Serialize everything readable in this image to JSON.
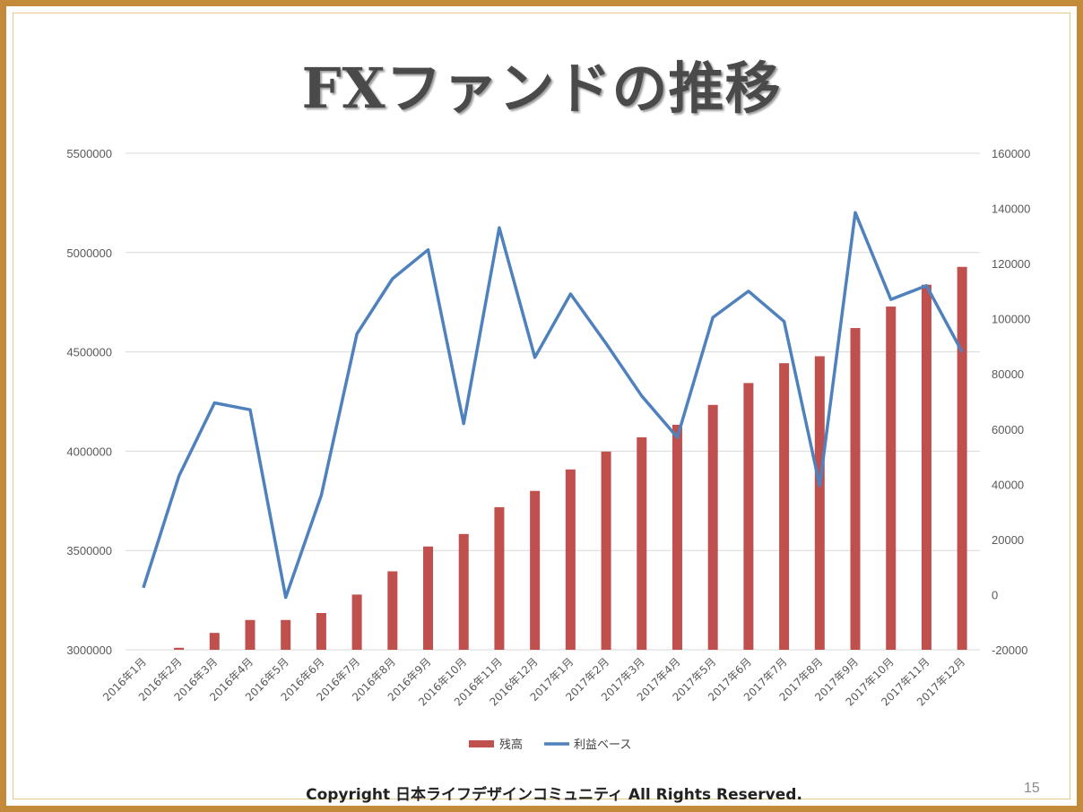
{
  "slide": {
    "title": "FXファンドの推移",
    "footer": "Copyright 日本ライフデザインコミュニティ All Rights Reserved.",
    "page_number": "15"
  },
  "colors": {
    "bar": "#c0504d",
    "line": "#4f81bd",
    "grid": "#d9d9d9",
    "frame": "#c38a3a"
  },
  "chart_data": {
    "type": "bar",
    "combo": "bar+line",
    "categories": [
      "2016年1月",
      "2016年2月",
      "2016年3月",
      "2016年4月",
      "2016年5月",
      "2016年6月",
      "2016年7月",
      "2016年8月",
      "2016年9月",
      "2016年10月",
      "2016年11月",
      "2016年12月",
      "2017年1月",
      "2017年2月",
      "2017年3月",
      "2017年4月",
      "2017年5月",
      "2017年6月",
      "2017年7月",
      "2017年8月",
      "2017年9月",
      "2017年10月",
      "2017年11月",
      "2017年12月"
    ],
    "series": [
      {
        "name": "残高",
        "type": "bar",
        "axis": "left",
        "values": [
          3000000,
          3010000,
          3085000,
          3150000,
          3150000,
          3185000,
          3278000,
          3395000,
          3520000,
          3583000,
          3718000,
          3800000,
          3908000,
          3998000,
          4070000,
          4133000,
          4233000,
          4343000,
          4443000,
          4478000,
          4620000,
          4728000,
          4838000,
          4928000
        ]
      },
      {
        "name": "利益ベース",
        "type": "line",
        "axis": "right",
        "values": [
          2500,
          43000,
          69500,
          67000,
          -1000,
          36000,
          94500,
          114500,
          125000,
          62000,
          133000,
          86000,
          109000,
          91000,
          72000,
          57000,
          100500,
          110000,
          99000,
          39500,
          138500,
          107000,
          112000,
          88000
        ]
      }
    ],
    "y_left": {
      "min": 3000000,
      "max": 5500000,
      "ticks": [
        "3000000",
        "3500000",
        "4000000",
        "4500000",
        "5000000",
        "5500000"
      ]
    },
    "y_right": {
      "min": -20000,
      "max": 160000,
      "ticks": [
        "-20000",
        "0",
        "20000",
        "40000",
        "60000",
        "80000",
        "100000",
        "120000",
        "140000",
        "160000"
      ]
    },
    "grid": true,
    "legend_position": "bottom"
  }
}
